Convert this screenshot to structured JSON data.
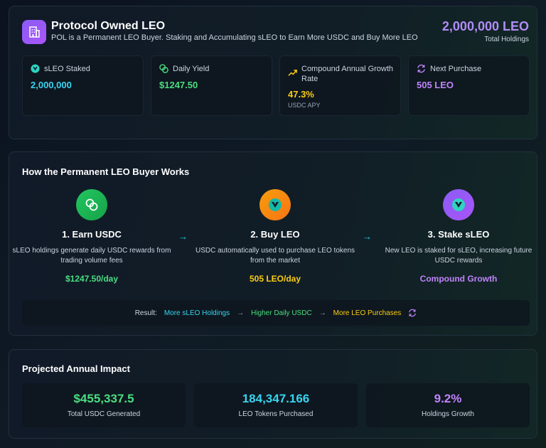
{
  "header": {
    "title": "Protocol Owned LEO",
    "subtitle": "POL is a Permanent LEO Buyer. Staking and Accumulating sLEO to Earn More USDC and Buy More LEO",
    "holdings_value": "2,000,000 LEO",
    "holdings_label": "Total Holdings",
    "icon": "building-icon"
  },
  "stats": [
    {
      "label": "sLEO Staked",
      "value": "2,000,000",
      "color": "#38d4f0",
      "icon": "leo-shield-icon"
    },
    {
      "label": "Daily Yield",
      "value": "$1247.50",
      "color": "#4ade80",
      "icon": "coins-icon"
    },
    {
      "label": "Compound Annual Growth Rate",
      "value": "47.3%",
      "sub": "USDC APY",
      "color": "#facc15",
      "icon": "trending-up-icon"
    },
    {
      "label": "Next Purchase",
      "value": "505 LEO",
      "color": "#c084fc",
      "icon": "refresh-icon"
    }
  ],
  "how": {
    "title": "How the Permanent LEO Buyer Works",
    "steps": [
      {
        "title": "1. Earn USDC",
        "desc": "sLEO holdings generate daily USDC rewards from trading volume fees",
        "value": "$1247.50/day",
        "color": "#4ade80"
      },
      {
        "title": "2. Buy LEO",
        "desc": "USDC automatically used to purchase LEO tokens from the market",
        "value": "505 LEO/day",
        "color": "#facc15"
      },
      {
        "title": "3. Stake sLEO",
        "desc": "New LEO is staked for sLEO, increasing future USDC rewards",
        "value": "Compound Growth",
        "color": "#c084fc"
      }
    ],
    "result": {
      "label": "Result:",
      "items": [
        {
          "text": "More sLEO Holdings",
          "color": "#38d4f0"
        },
        {
          "text": "Higher Daily USDC",
          "color": "#4ade80"
        },
        {
          "text": "More LEO Purchases",
          "color": "#facc15"
        }
      ]
    }
  },
  "impact": {
    "title": "Projected Annual Impact",
    "items": [
      {
        "value": "$455,337.5",
        "label": "Total USDC Generated",
        "color": "#4ade80"
      },
      {
        "value": "184,347.166",
        "label": "LEO Tokens Purchased",
        "color": "#38d4f0"
      },
      {
        "value": "9.2%",
        "label": "Holdings Growth",
        "color": "#c084fc"
      }
    ]
  }
}
